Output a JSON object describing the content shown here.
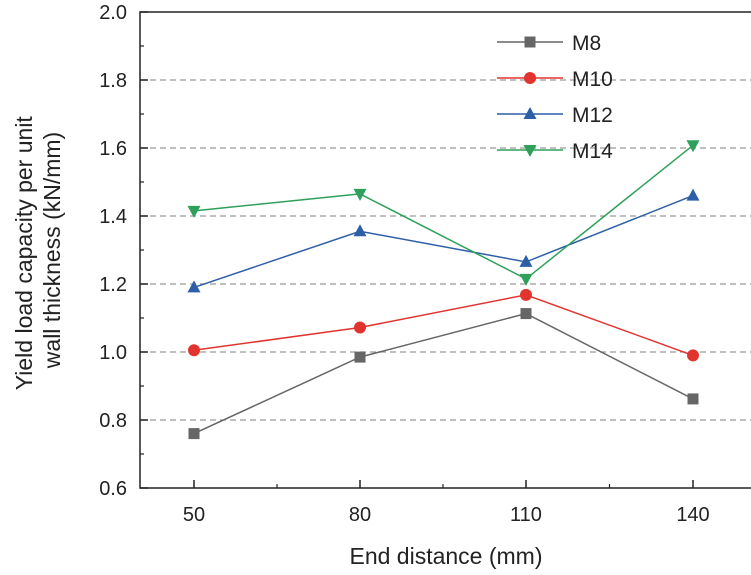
{
  "chart_data": {
    "type": "line",
    "x_label": "End distance (mm)",
    "y_label_lines": [
      "Yield load capacity per unit",
      "wall thickness (kN/mm)"
    ],
    "categories": [
      "50",
      "80",
      "110",
      "140"
    ],
    "x": [
      50,
      80,
      110,
      140
    ],
    "ylim": [
      0.6,
      2.0
    ],
    "y_ticks": [
      "0.6",
      "0.8",
      "1.0",
      "1.2",
      "1.4",
      "1.6",
      "1.8",
      "2.0"
    ],
    "gridlines": [
      0.8,
      1.0,
      1.2,
      1.4,
      1.6,
      1.8
    ],
    "grid": "horizontal dashed",
    "legend_position": "top-right",
    "series": [
      {
        "name": "M8",
        "color": "#666666",
        "marker": "square",
        "values": [
          0.76,
          0.985,
          1.113,
          0.862
        ]
      },
      {
        "name": "M10",
        "color": "#e2342f",
        "marker": "circle",
        "values": [
          1.005,
          1.072,
          1.168,
          0.99
        ]
      },
      {
        "name": "M12",
        "color": "#2d5ea8",
        "marker": "triangle-up",
        "values": [
          1.19,
          1.355,
          1.265,
          1.46
        ]
      },
      {
        "name": "M14",
        "color": "#2ea05a",
        "marker": "triangle-down",
        "values": [
          1.415,
          1.465,
          1.215,
          1.608
        ]
      }
    ]
  }
}
